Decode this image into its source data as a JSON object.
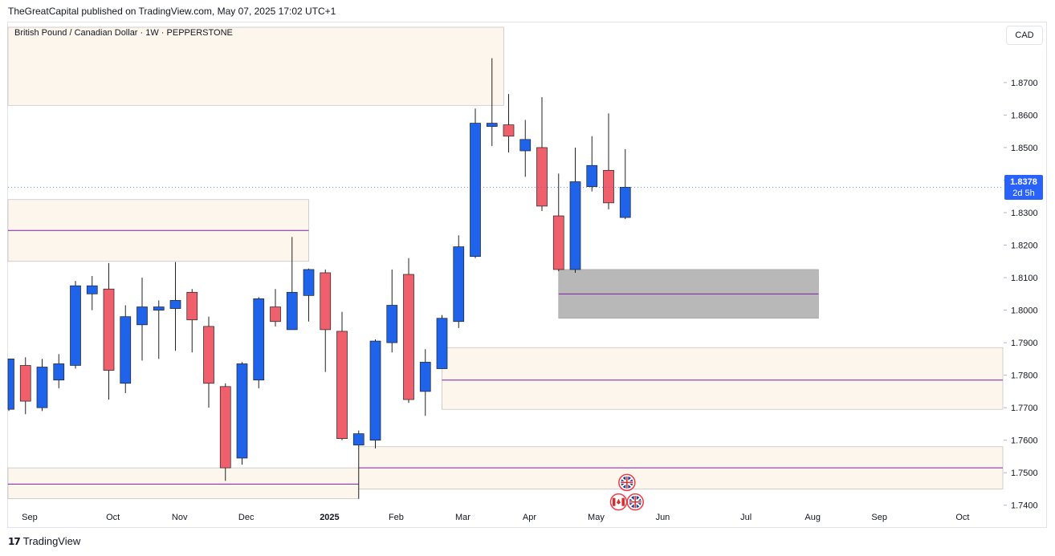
{
  "header": {
    "published_text": "TheGreatCapital published on TradingView.com, May 07, 2025 17:02 UTC+1"
  },
  "chart": {
    "symbol_line": "British Pound / Canadian Dollar · 1W · PEPPERSTONE",
    "currency": "CAD",
    "last_price": "1.8378",
    "countdown": "2d 5h"
  },
  "footer": {
    "logo_text": "TradingView"
  },
  "colors": {
    "up": "#1e63e9",
    "down": "#f0606c",
    "zone_fill": "#fdf6ec",
    "zone_line": "#7b1fa2",
    "gray_zone": "#b8b8b8",
    "last_price_bg": "#2962ff"
  },
  "chart_data": {
    "type": "candlestick",
    "title": "British Pound / Canadian Dollar · 1W · PEPPERSTONE",
    "ylabel": "CAD",
    "ylim": [
      1.735,
      1.887
    ],
    "y_ticks": [
      "1.8700",
      "1.8600",
      "1.8500",
      "1.8400",
      "1.8300",
      "1.8200",
      "1.8100",
      "1.8000",
      "1.7900",
      "1.7800",
      "1.7700",
      "1.7600",
      "1.7500",
      "1.7400"
    ],
    "x_ticks": [
      {
        "label": "Sep",
        "bold": false
      },
      {
        "label": "Oct",
        "bold": false
      },
      {
        "label": "Nov",
        "bold": false
      },
      {
        "label": "Dec",
        "bold": false
      },
      {
        "label": "2025",
        "bold": true
      },
      {
        "label": "Feb",
        "bold": false
      },
      {
        "label": "Mar",
        "bold": false
      },
      {
        "label": "Apr",
        "bold": false
      },
      {
        "label": "May",
        "bold": false
      },
      {
        "label": "Jun",
        "bold": false
      },
      {
        "label": "Jul",
        "bold": false
      },
      {
        "label": "Aug",
        "bold": false
      },
      {
        "label": "Sep",
        "bold": false
      },
      {
        "label": "Oct",
        "bold": false
      }
    ],
    "x_tick_index": [
      1.25,
      6.25,
      10.25,
      14.25,
      19.25,
      23.25,
      27.25,
      31.25,
      35.25,
      39.25,
      44.25,
      48.25,
      52.25,
      57.25
    ],
    "candles": [
      {
        "o": 1.7695,
        "h": 1.785,
        "l": 1.769,
        "c": 1.785
      },
      {
        "o": 1.783,
        "h": 1.7855,
        "l": 1.768,
        "c": 1.772
      },
      {
        "o": 1.77,
        "h": 1.785,
        "l": 1.769,
        "c": 1.7825
      },
      {
        "o": 1.7785,
        "h": 1.7865,
        "l": 1.776,
        "c": 1.7835
      },
      {
        "o": 1.783,
        "h": 1.809,
        "l": 1.782,
        "c": 1.8075
      },
      {
        "o": 1.805,
        "h": 1.8105,
        "l": 1.8,
        "c": 1.8075
      },
      {
        "o": 1.8065,
        "h": 1.8145,
        "l": 1.7725,
        "c": 1.7815
      },
      {
        "o": 1.7775,
        "h": 1.8015,
        "l": 1.7745,
        "c": 1.798
      },
      {
        "o": 1.7955,
        "h": 1.81,
        "l": 1.7845,
        "c": 1.801
      },
      {
        "o": 1.8,
        "h": 1.803,
        "l": 1.785,
        "c": 1.801
      },
      {
        "o": 1.8005,
        "h": 1.8148,
        "l": 1.7875,
        "c": 1.803
      },
      {
        "o": 1.8055,
        "h": 1.8065,
        "l": 1.787,
        "c": 1.797
      },
      {
        "o": 1.795,
        "h": 1.798,
        "l": 1.77,
        "c": 1.7775
      },
      {
        "o": 1.7765,
        "h": 1.7775,
        "l": 1.7475,
        "c": 1.7515
      },
      {
        "o": 1.7545,
        "h": 1.784,
        "l": 1.7525,
        "c": 1.7835
      },
      {
        "o": 1.7785,
        "h": 1.804,
        "l": 1.776,
        "c": 1.8035
      },
      {
        "o": 1.801,
        "h": 1.8065,
        "l": 1.795,
        "c": 1.7965
      },
      {
        "o": 1.794,
        "h": 1.8225,
        "l": 1.794,
        "c": 1.8055
      },
      {
        "o": 1.8045,
        "h": 1.8128,
        "l": 1.7965,
        "c": 1.8125
      },
      {
        "o": 1.8115,
        "h": 1.8125,
        "l": 1.781,
        "c": 1.794
      },
      {
        "o": 1.7935,
        "h": 1.7995,
        "l": 1.76,
        "c": 1.7605
      },
      {
        "o": 1.7585,
        "h": 1.763,
        "l": 1.742,
        "c": 1.762
      },
      {
        "o": 1.76,
        "h": 1.791,
        "l": 1.7575,
        "c": 1.7905
      },
      {
        "o": 1.79,
        "h": 1.8125,
        "l": 1.787,
        "c": 1.8015
      },
      {
        "o": 1.811,
        "h": 1.816,
        "l": 1.7715,
        "c": 1.7725
      },
      {
        "o": 1.775,
        "h": 1.788,
        "l": 1.7675,
        "c": 1.784
      },
      {
        "o": 1.782,
        "h": 1.7985,
        "l": 1.782,
        "c": 1.7975
      },
      {
        "o": 1.7965,
        "h": 1.823,
        "l": 1.7945,
        "c": 1.8195
      },
      {
        "o": 1.8165,
        "h": 1.862,
        "l": 1.816,
        "c": 1.8575
      },
      {
        "o": 1.8565,
        "h": 1.8775,
        "l": 1.8505,
        "c": 1.8575
      },
      {
        "o": 1.857,
        "h": 1.8665,
        "l": 1.8485,
        "c": 1.8535
      },
      {
        "o": 1.849,
        "h": 1.8585,
        "l": 1.841,
        "c": 1.8525
      },
      {
        "o": 1.85,
        "h": 1.8655,
        "l": 1.8305,
        "c": 1.832
      },
      {
        "o": 1.829,
        "h": 1.842,
        "l": 1.812,
        "c": 1.8125
      },
      {
        "o": 1.8125,
        "h": 1.85,
        "l": 1.8115,
        "c": 1.8395
      },
      {
        "o": 1.838,
        "h": 1.8535,
        "l": 1.8365,
        "c": 1.8445
      },
      {
        "o": 1.843,
        "h": 1.8605,
        "l": 1.831,
        "c": 1.833
      },
      {
        "o": 1.8285,
        "h": 1.8495,
        "l": 1.828,
        "c": 1.8378
      }
    ],
    "zones": [
      {
        "from_index": -1.0,
        "to_index": 29.7,
        "top": 1.887,
        "bottom": 1.863,
        "line": null
      },
      {
        "from_index": -1.0,
        "to_index": 18.0,
        "top": 1.834,
        "bottom": 1.815,
        "line": 1.8245
      },
      {
        "from_index": 26.0,
        "to_index": 60.6,
        "top": 1.7885,
        "bottom": 1.7695,
        "line": 1.7785
      },
      {
        "from_index": 21.0,
        "to_index": 60.6,
        "top": 1.758,
        "bottom": 1.745,
        "line": 1.7515
      },
      {
        "from_index": -1.0,
        "to_index": 21.0,
        "top": 1.7515,
        "bottom": 1.742,
        "line": 1.7465
      }
    ],
    "gray_zone": {
      "from_index": 33.0,
      "to_index": 48.6,
      "top": 1.8125,
      "bottom": 1.7975,
      "line": 1.805
    },
    "event_markers": [
      {
        "index": 37.1,
        "price": 1.747,
        "flags": [
          "GB"
        ]
      },
      {
        "index": 36.6,
        "price": 1.741,
        "flags": [
          "CA"
        ]
      },
      {
        "index": 37.6,
        "price": 1.741,
        "flags": [
          "GB"
        ]
      }
    ]
  }
}
